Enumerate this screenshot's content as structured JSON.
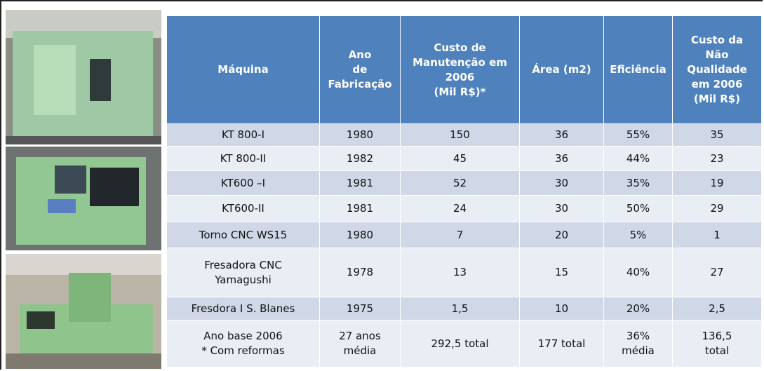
{
  "table": {
    "header": [
      "Máquina",
      "Ano\nde\nFabricação",
      "Custo de\nManutenção em\n2006\n(Mil R$)*",
      "Área  (m2)",
      "Eficiência",
      "Custo da\nNão\nQualidade\nem 2006\n(Mil R$)"
    ],
    "rows": [
      [
        "KT 800-I",
        "1980",
        "150",
        "36",
        "55%",
        "35"
      ],
      [
        "KT 800-II",
        "1982",
        "45",
        "36",
        "44%",
        "23"
      ],
      [
        "KT600 –I",
        "1981",
        "52",
        "30",
        "35%",
        "19"
      ],
      [
        "KT600-II",
        "1981",
        "24",
        "30",
        "50%",
        "29"
      ],
      [
        "Torno CNC WS15",
        "1980",
        "7",
        "20",
        "5%",
        "1"
      ],
      [
        "Fresadora CNC\nYamagushi",
        "1978",
        "13",
        "15",
        "40%",
        "27"
      ],
      [
        "Fresdora I S. Blanes",
        "1975",
        "1,5",
        "10",
        "20%",
        "2,5"
      ],
      [
        "Ano base 2006\n* Com reformas",
        "27 anos\nmédia",
        "292,5 total",
        "177 total",
        "36%\nmédia",
        "136,5\ntotal"
      ]
    ]
  }
}
